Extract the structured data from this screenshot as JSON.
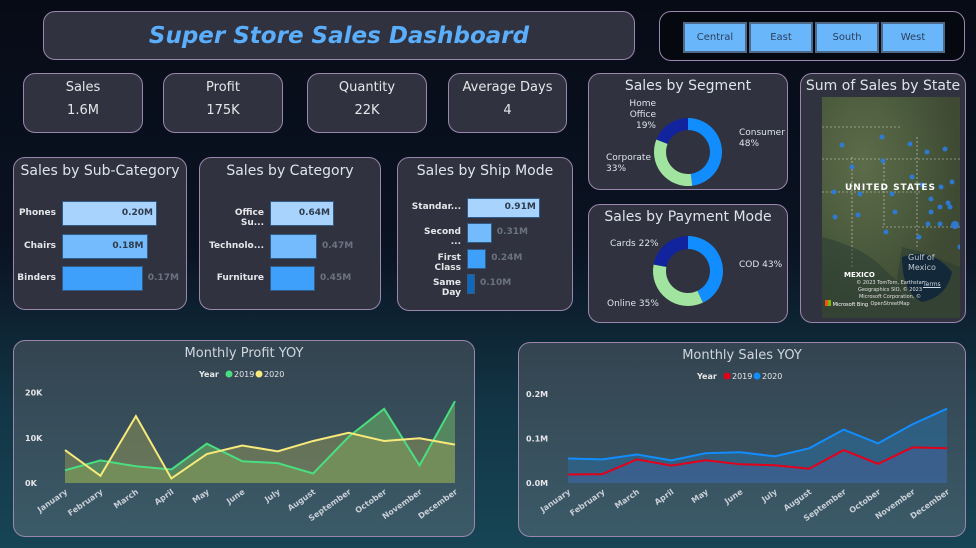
{
  "header": {
    "title": "Super Store Sales Dashboard"
  },
  "region_slicer": {
    "options": [
      "Central",
      "East",
      "South",
      "West"
    ]
  },
  "kpis": [
    {
      "label": "Sales",
      "value": "1.6M"
    },
    {
      "label": "Profit",
      "value": "175K"
    },
    {
      "label": "Quantity",
      "value": "22K"
    },
    {
      "label": "Average Days",
      "value": "4"
    }
  ],
  "sub_category": {
    "title": "Sales by Sub-Category",
    "items": [
      {
        "label": "Phones",
        "value": 0.2,
        "text": "0.20M",
        "color": "#a8d3fd"
      },
      {
        "label": "Chairs",
        "value": 0.18,
        "text": "0.18M",
        "color": "#73bbfc"
      },
      {
        "label": "Binders",
        "value": 0.17,
        "text": "0.17M",
        "color": "#3fa0fb"
      }
    ]
  },
  "category": {
    "title": "Sales by Category",
    "items": [
      {
        "label": "Office Su...",
        "value": 0.64,
        "text": "0.64M",
        "color": "#a8d3fd"
      },
      {
        "label": "Technolo...",
        "value": 0.47,
        "text": "0.47M",
        "color": "#73bbfc"
      },
      {
        "label": "Furniture",
        "value": 0.45,
        "text": "0.45M",
        "color": "#3fa0fb"
      }
    ]
  },
  "ship_mode": {
    "title": "Sales by Ship Mode",
    "items": [
      {
        "label": "Standar...",
        "value": 0.91,
        "text": "0.91M",
        "color": "#a8d3fd"
      },
      {
        "label": "Second ...",
        "value": 0.31,
        "text": "0.31M",
        "color": "#73bbfc"
      },
      {
        "label": "First Class",
        "value": 0.24,
        "text": "0.24M",
        "color": "#3fa0fb"
      },
      {
        "label": "Same Day",
        "value": 0.1,
        "text": "0.10M",
        "color": "#1268b8"
      }
    ]
  },
  "segment": {
    "title": "Sales by Segment",
    "slices": [
      {
        "label": "Consumer",
        "pct": 48,
        "text": "48%",
        "color": "#118dff"
      },
      {
        "label": "Corporate",
        "pct": 33,
        "text": "33%",
        "color": "#a0e4a0"
      },
      {
        "label": "Home Office",
        "pct": 19,
        "text": "19%",
        "color": "#12239e"
      }
    ]
  },
  "payment": {
    "title": "Sales by Payment Mode",
    "slices": [
      {
        "label": "COD 43%",
        "pct": 43,
        "color": "#118dff"
      },
      {
        "label": "Online 35%",
        "pct": 35,
        "color": "#a0e4a0"
      },
      {
        "label": "Cards 22%",
        "pct": 22,
        "color": "#12239e"
      }
    ]
  },
  "map": {
    "title": "Sum of Sales by State",
    "labels": {
      "country": "UNITED STATES",
      "gulf": "Gulf of Mexico",
      "mexico": "MEXICO"
    },
    "attribution": "© 2023 TomTom, Earthstar Geographics SIO, © 2023 Microsoft Corporation, © OpenStreetMap",
    "terms": "Terms",
    "brand": "Microsoft Bing"
  },
  "chart_data": [
    {
      "type": "area",
      "title": "Monthly Profit YOY",
      "legend_title": "Year",
      "legend": "top-center",
      "categories": [
        "January",
        "February",
        "March",
        "April",
        "May",
        "June",
        "July",
        "August",
        "September",
        "October",
        "November",
        "December"
      ],
      "ylim": [
        0,
        20000
      ],
      "yticks": [
        "0K",
        "10K",
        "20K"
      ],
      "grid": false,
      "series": [
        {
          "name": "2019",
          "color": "#4ade80",
          "values": [
            2800,
            5000,
            3700,
            3000,
            8700,
            4800,
            4400,
            2100,
            10200,
            16400,
            3900,
            18100
          ]
        },
        {
          "name": "2020",
          "color": "#f7ea7a",
          "values": [
            7300,
            1600,
            14800,
            1000,
            6400,
            8300,
            7000,
            9300,
            11100,
            9300,
            9900,
            8500
          ]
        }
      ]
    },
    {
      "type": "area",
      "title": "Monthly Sales YOY",
      "legend_title": "Year",
      "legend": "top-center",
      "categories": [
        "January",
        "February",
        "March",
        "April",
        "May",
        "June",
        "July",
        "August",
        "September",
        "October",
        "November",
        "December"
      ],
      "ylim": [
        0,
        0.2
      ],
      "yticks": [
        "0.0M",
        "0.1M",
        "0.2M"
      ],
      "grid": false,
      "series": [
        {
          "name": "2019",
          "color": "#e3001b",
          "values": [
            0.019,
            0.02,
            0.053,
            0.039,
            0.051,
            0.042,
            0.04,
            0.032,
            0.074,
            0.043,
            0.08,
            0.078
          ]
        },
        {
          "name": "2020",
          "color": "#118dff",
          "values": [
            0.055,
            0.053,
            0.064,
            0.051,
            0.067,
            0.069,
            0.06,
            0.078,
            0.12,
            0.089,
            0.132,
            0.167
          ]
        }
      ]
    }
  ]
}
